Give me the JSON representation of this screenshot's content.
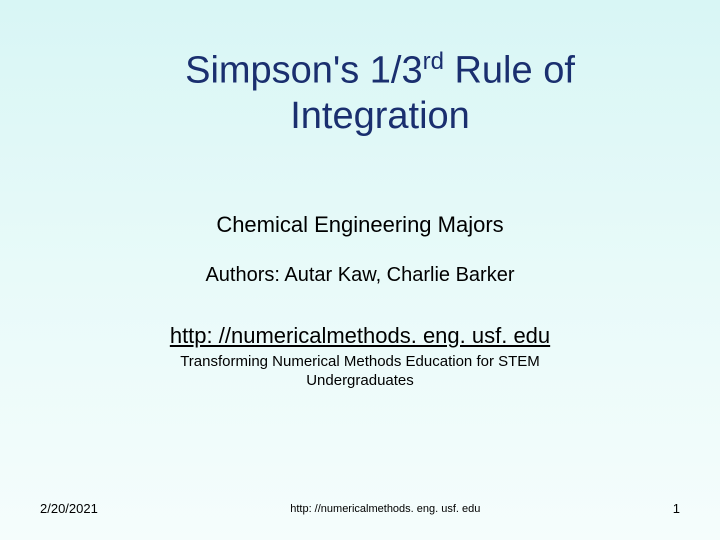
{
  "slide": {
    "background_gradient": [
      "#d8f6f5",
      "#e8faf9",
      "#f5fdfc"
    ],
    "title_pre": "Simpson's 1/3",
    "title_sup": "rd",
    "title_post": " Rule of Integration",
    "title_color": "#1a2f6f",
    "title_fontsize": 38,
    "subtitle": "Chemical Engineering Majors",
    "subtitle_fontsize": 22,
    "authors": "Authors: Autar Kaw, Charlie Barker",
    "authors_fontsize": 20,
    "link": "http: //numericalmethods. eng. usf. edu",
    "link_fontsize": 22,
    "tagline": "Transforming Numerical Methods Education for STEM Undergraduates",
    "tagline_fontsize": 15
  },
  "footer": {
    "date": "2/20/2021",
    "link": "http: //numericalmethods. eng. usf. edu",
    "page_number": "1",
    "fontsize": 13
  }
}
